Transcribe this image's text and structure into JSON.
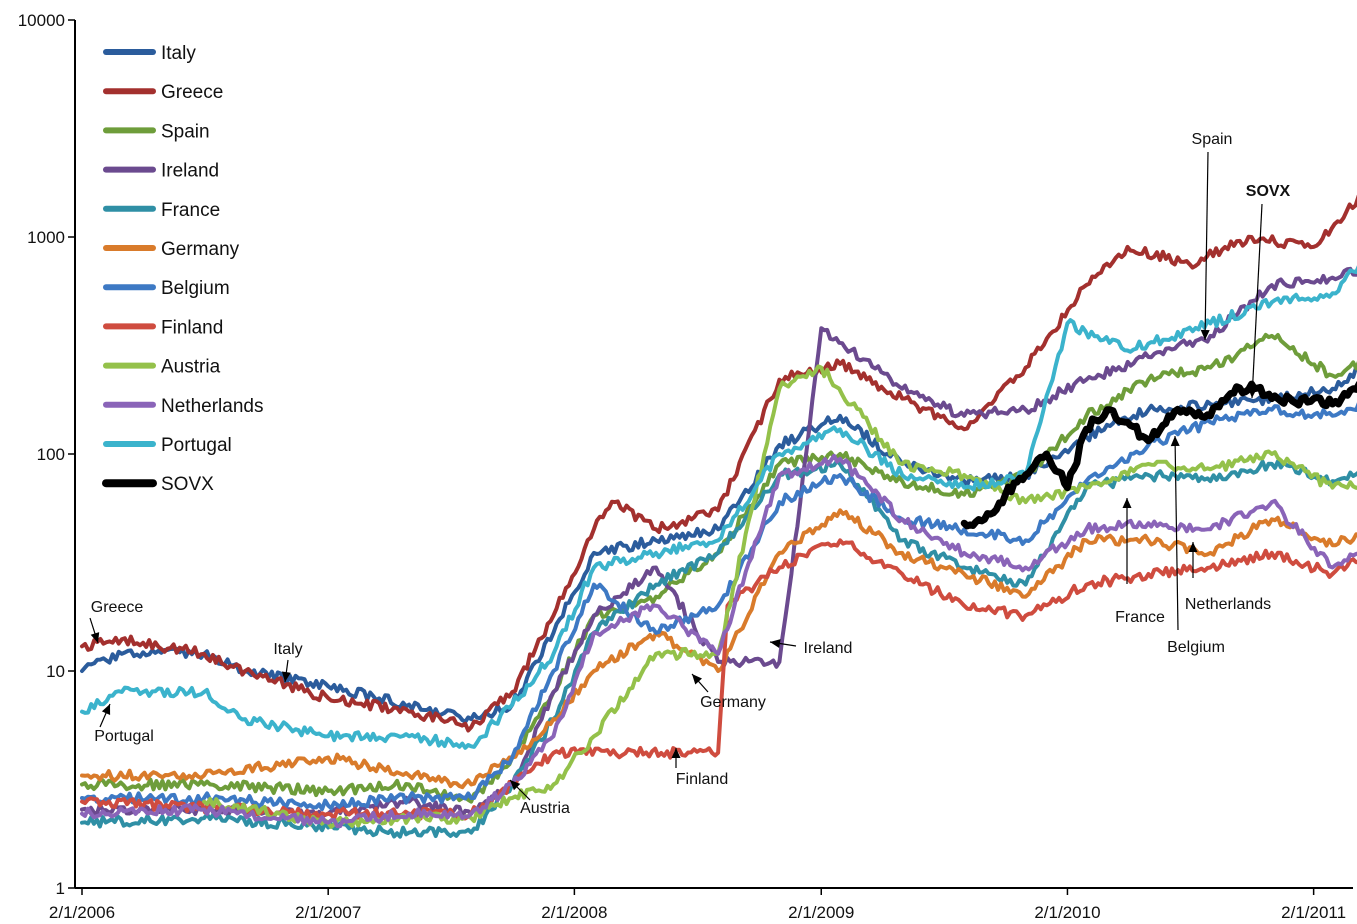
{
  "chart_data": {
    "type": "line",
    "y_scale": "log",
    "ylim": [
      1,
      10000
    ],
    "y_ticks": [
      "1",
      "10",
      "100",
      "1000",
      "10000"
    ],
    "x_range": [
      "2006-02-01",
      "2011-06-01"
    ],
    "x_ticks": [
      {
        "date": "2006-02-01",
        "label": "2/1/2006"
      },
      {
        "date": "2007-02-01",
        "label": "2/1/2007"
      },
      {
        "date": "2008-02-01",
        "label": "2/1/2008"
      },
      {
        "date": "2009-02-01",
        "label": "2/1/2009"
      },
      {
        "date": "2010-02-01",
        "label": "2/1/2010"
      },
      {
        "date": "2011-02-01",
        "label": "2/1/2011"
      }
    ],
    "grid": false,
    "legend_position": "top-left",
    "series": [
      {
        "name": "Italy",
        "color": "#2b5c9c",
        "points": [
          [
            "2006-02-01",
            10
          ],
          [
            "2006-04-01",
            12
          ],
          [
            "2006-08-01",
            12
          ],
          [
            "2006-10-01",
            10
          ],
          [
            "2007-02-01",
            8.5
          ],
          [
            "2007-06-01",
            7
          ],
          [
            "2007-09-01",
            6
          ],
          [
            "2007-11-01",
            7
          ],
          [
            "2008-01-01",
            15
          ],
          [
            "2008-03-01",
            35
          ],
          [
            "2008-06-01",
            40
          ],
          [
            "2008-09-01",
            45
          ],
          [
            "2008-12-01",
            110
          ],
          [
            "2009-03-01",
            150
          ],
          [
            "2009-06-01",
            90
          ],
          [
            "2009-09-01",
            75
          ],
          [
            "2009-12-01",
            80
          ],
          [
            "2010-03-01",
            120
          ],
          [
            "2010-06-01",
            160
          ],
          [
            "2010-09-01",
            170
          ],
          [
            "2010-12-01",
            180
          ],
          [
            "2011-03-01",
            200
          ],
          [
            "2011-06-01",
            330
          ]
        ]
      },
      {
        "name": "Greece",
        "color": "#a3302e",
        "points": [
          [
            "2006-02-01",
            13
          ],
          [
            "2006-04-01",
            14
          ],
          [
            "2006-08-01",
            12
          ],
          [
            "2006-10-01",
            10
          ],
          [
            "2007-02-01",
            7.5
          ],
          [
            "2007-06-01",
            6.5
          ],
          [
            "2007-09-01",
            5.5
          ],
          [
            "2007-11-01",
            8
          ],
          [
            "2008-01-01",
            18
          ],
          [
            "2008-03-01",
            45
          ],
          [
            "2008-04-01",
            60
          ],
          [
            "2008-06-01",
            45
          ],
          [
            "2008-09-01",
            55
          ],
          [
            "2008-12-01",
            220
          ],
          [
            "2009-03-01",
            260
          ],
          [
            "2009-06-01",
            180
          ],
          [
            "2009-09-01",
            130
          ],
          [
            "2009-12-01",
            250
          ],
          [
            "2010-03-01",
            600
          ],
          [
            "2010-05-01",
            900
          ],
          [
            "2010-08-01",
            750
          ],
          [
            "2010-11-01",
            1000
          ],
          [
            "2011-02-01",
            900
          ],
          [
            "2011-06-01",
            2200
          ]
        ]
      },
      {
        "name": "Spain",
        "color": "#6e9d3a",
        "points": [
          [
            "2006-02-01",
            3
          ],
          [
            "2006-08-01",
            3
          ],
          [
            "2007-02-01",
            2.8
          ],
          [
            "2007-06-01",
            3
          ],
          [
            "2007-09-01",
            2.5
          ],
          [
            "2007-11-01",
            4
          ],
          [
            "2008-01-01",
            8
          ],
          [
            "2008-03-01",
            18
          ],
          [
            "2008-06-01",
            22
          ],
          [
            "2008-09-01",
            35
          ],
          [
            "2008-12-01",
            90
          ],
          [
            "2009-03-01",
            100
          ],
          [
            "2009-06-01",
            75
          ],
          [
            "2009-09-01",
            65
          ],
          [
            "2009-12-01",
            80
          ],
          [
            "2010-03-01",
            150
          ],
          [
            "2010-06-01",
            220
          ],
          [
            "2010-09-01",
            250
          ],
          [
            "2010-12-01",
            350
          ],
          [
            "2011-03-01",
            230
          ],
          [
            "2011-06-01",
            300
          ]
        ]
      },
      {
        "name": "Ireland",
        "color": "#6b4a8f",
        "points": [
          [
            "2006-02-01",
            2.3
          ],
          [
            "2006-08-01",
            2.3
          ],
          [
            "2007-02-01",
            2.2
          ],
          [
            "2007-06-01",
            2.5
          ],
          [
            "2007-09-01",
            2.2
          ],
          [
            "2007-11-01",
            3
          ],
          [
            "2008-01-01",
            8
          ],
          [
            "2008-03-01",
            18
          ],
          [
            "2008-06-01",
            30
          ],
          [
            "2008-09-01",
            11
          ],
          [
            "2008-12-01",
            11
          ],
          [
            "2009-01-01",
            60
          ],
          [
            "2009-02-01",
            380
          ],
          [
            "2009-06-01",
            200
          ],
          [
            "2009-09-01",
            150
          ],
          [
            "2009-12-01",
            160
          ],
          [
            "2010-03-01",
            220
          ],
          [
            "2010-06-01",
            280
          ],
          [
            "2010-09-01",
            350
          ],
          [
            "2010-12-01",
            600
          ],
          [
            "2011-03-01",
            650
          ],
          [
            "2011-06-01",
            800
          ]
        ]
      },
      {
        "name": "France",
        "color": "#2f8fa5",
        "points": [
          [
            "2006-02-01",
            2
          ],
          [
            "2006-08-01",
            2.1
          ],
          [
            "2007-02-01",
            1.9
          ],
          [
            "2007-06-01",
            1.8
          ],
          [
            "2007-09-01",
            1.8
          ],
          [
            "2007-11-01",
            3
          ],
          [
            "2008-01-01",
            6
          ],
          [
            "2008-03-01",
            15
          ],
          [
            "2008-06-01",
            25
          ],
          [
            "2008-09-01",
            35
          ],
          [
            "2008-12-01",
            80
          ],
          [
            "2009-03-01",
            90
          ],
          [
            "2009-06-01",
            40
          ],
          [
            "2009-09-01",
            30
          ],
          [
            "2009-12-01",
            25
          ],
          [
            "2010-03-01",
            70
          ],
          [
            "2010-06-01",
            80
          ],
          [
            "2010-09-01",
            75
          ],
          [
            "2010-12-01",
            90
          ],
          [
            "2011-03-01",
            75
          ],
          [
            "2011-06-01",
            100
          ]
        ]
      },
      {
        "name": "Germany",
        "color": "#d97b2b",
        "points": [
          [
            "2006-02-01",
            3.3
          ],
          [
            "2006-08-01",
            3.3
          ],
          [
            "2007-02-01",
            4
          ],
          [
            "2007-06-01",
            3.3
          ],
          [
            "2007-09-01",
            3
          ],
          [
            "2007-11-01",
            4
          ],
          [
            "2008-01-01",
            6
          ],
          [
            "2008-03-01",
            10
          ],
          [
            "2008-06-01",
            15
          ],
          [
            "2008-09-01",
            10
          ],
          [
            "2008-12-01",
            35
          ],
          [
            "2009-03-01",
            55
          ],
          [
            "2009-06-01",
            35
          ],
          [
            "2009-09-01",
            28
          ],
          [
            "2009-12-01",
            22
          ],
          [
            "2010-03-01",
            40
          ],
          [
            "2010-06-01",
            40
          ],
          [
            "2010-09-01",
            35
          ],
          [
            "2010-12-01",
            50
          ],
          [
            "2011-03-01",
            38
          ],
          [
            "2011-06-01",
            50
          ]
        ]
      },
      {
        "name": "Belgium",
        "color": "#3d79c4",
        "points": [
          [
            "2006-02-01",
            2.6
          ],
          [
            "2006-08-01",
            2.6
          ],
          [
            "2007-02-01",
            2.4
          ],
          [
            "2007-06-01",
            2.6
          ],
          [
            "2007-09-01",
            2.6
          ],
          [
            "2007-11-01",
            4
          ],
          [
            "2008-01-01",
            10
          ],
          [
            "2008-03-01",
            25
          ],
          [
            "2008-06-01",
            15
          ],
          [
            "2008-09-01",
            20
          ],
          [
            "2008-12-01",
            60
          ],
          [
            "2009-03-01",
            80
          ],
          [
            "2009-06-01",
            50
          ],
          [
            "2009-09-01",
            45
          ],
          [
            "2009-12-01",
            40
          ],
          [
            "2010-03-01",
            75
          ],
          [
            "2010-06-01",
            110
          ],
          [
            "2010-09-01",
            140
          ],
          [
            "2010-12-01",
            160
          ],
          [
            "2011-03-01",
            150
          ],
          [
            "2011-06-01",
            200
          ]
        ]
      },
      {
        "name": "Finland",
        "color": "#cf4c3f",
        "points": [
          [
            "2006-02-01",
            2.5
          ],
          [
            "2007-02-01",
            2.2
          ],
          [
            "2007-09-01",
            2.2
          ],
          [
            "2007-11-01",
            3
          ],
          [
            "2008-01-01",
            4.2
          ],
          [
            "2008-09-01",
            4.2
          ],
          [
            "2008-09-15",
            20
          ],
          [
            "2008-12-01",
            30
          ],
          [
            "2009-03-01",
            40
          ],
          [
            "2009-06-01",
            28
          ],
          [
            "2009-09-01",
            20
          ],
          [
            "2009-12-01",
            18
          ],
          [
            "2010-03-01",
            25
          ],
          [
            "2010-06-01",
            28
          ],
          [
            "2010-09-01",
            30
          ],
          [
            "2010-12-01",
            35
          ],
          [
            "2011-03-01",
            28
          ],
          [
            "2011-06-01",
            40
          ]
        ]
      },
      {
        "name": "Austria",
        "color": "#94c14a",
        "points": [
          [
            "2006-08-01",
            2.5
          ],
          [
            "2007-02-01",
            2.0
          ],
          [
            "2007-06-01",
            2.1
          ],
          [
            "2007-09-01",
            2.1
          ],
          [
            "2007-11-01",
            2.6
          ],
          [
            "2008-01-01",
            3
          ],
          [
            "2008-03-01",
            5
          ],
          [
            "2008-06-01",
            12
          ],
          [
            "2008-09-01",
            12
          ],
          [
            "2008-12-01",
            200
          ],
          [
            "2009-02-01",
            250
          ],
          [
            "2009-06-01",
            90
          ],
          [
            "2009-09-01",
            80
          ],
          [
            "2009-12-01",
            60
          ],
          [
            "2010-03-01",
            70
          ],
          [
            "2010-06-01",
            90
          ],
          [
            "2010-09-01",
            85
          ],
          [
            "2010-12-01",
            100
          ],
          [
            "2011-03-01",
            70
          ],
          [
            "2011-06-01",
            75
          ]
        ]
      },
      {
        "name": "Netherlands",
        "color": "#8a64b8",
        "points": [
          [
            "2006-02-01",
            2.2
          ],
          [
            "2006-08-01",
            2.3
          ],
          [
            "2007-02-01",
            2.0
          ],
          [
            "2007-06-01",
            2.2
          ],
          [
            "2007-09-01",
            2.2
          ],
          [
            "2007-11-01",
            3
          ],
          [
            "2008-01-01",
            5
          ],
          [
            "2008-03-01",
            15
          ],
          [
            "2008-06-01",
            20
          ],
          [
            "2008-09-01",
            12
          ],
          [
            "2008-12-01",
            80
          ],
          [
            "2009-03-01",
            95
          ],
          [
            "2009-06-01",
            50
          ],
          [
            "2009-09-01",
            35
          ],
          [
            "2009-12-01",
            30
          ],
          [
            "2010-03-01",
            45
          ],
          [
            "2010-06-01",
            48
          ],
          [
            "2010-09-01",
            45
          ],
          [
            "2010-12-01",
            60
          ],
          [
            "2011-03-01",
            30
          ],
          [
            "2011-06-01",
            45
          ]
        ]
      },
      {
        "name": "Portugal",
        "color": "#3bb3cc",
        "points": [
          [
            "2006-02-01",
            6.5
          ],
          [
            "2006-04-01",
            8
          ],
          [
            "2006-08-01",
            8
          ],
          [
            "2006-10-01",
            6
          ],
          [
            "2007-02-01",
            5
          ],
          [
            "2007-06-01",
            5
          ],
          [
            "2007-09-01",
            4.5
          ],
          [
            "2007-11-01",
            7
          ],
          [
            "2008-01-01",
            12
          ],
          [
            "2008-03-01",
            30
          ],
          [
            "2008-06-01",
            35
          ],
          [
            "2008-09-01",
            40
          ],
          [
            "2008-12-01",
            100
          ],
          [
            "2009-03-01",
            130
          ],
          [
            "2009-06-01",
            80
          ],
          [
            "2009-09-01",
            70
          ],
          [
            "2009-12-01",
            80
          ],
          [
            "2010-02-01",
            400
          ],
          [
            "2010-05-01",
            300
          ],
          [
            "2010-09-01",
            400
          ],
          [
            "2010-12-01",
            500
          ],
          [
            "2011-03-01",
            550
          ],
          [
            "2011-06-01",
            1100
          ]
        ]
      },
      {
        "name": "SOVX",
        "color": "#000000",
        "points": [
          [
            "2009-09-01",
            48
          ],
          [
            "2009-10-01",
            50
          ],
          [
            "2009-11-01",
            65
          ],
          [
            "2009-12-01",
            80
          ],
          [
            "2010-01-01",
            100
          ],
          [
            "2010-02-01",
            70
          ],
          [
            "2010-03-01",
            130
          ],
          [
            "2010-04-01",
            160
          ],
          [
            "2010-05-01",
            140
          ],
          [
            "2010-06-01",
            115
          ],
          [
            "2010-07-01",
            150
          ],
          [
            "2010-08-01",
            160
          ],
          [
            "2010-09-01",
            150
          ],
          [
            "2010-10-01",
            190
          ],
          [
            "2010-11-01",
            210
          ],
          [
            "2010-12-01",
            180
          ],
          [
            "2011-01-01",
            175
          ],
          [
            "2011-02-01",
            180
          ],
          [
            "2011-03-01",
            170
          ],
          [
            "2011-04-01",
            200
          ],
          [
            "2011-05-01",
            220
          ],
          [
            "2011-06-01",
            270
          ]
        ]
      }
    ],
    "annotations": [
      {
        "text": "Greece",
        "series": "Greece"
      },
      {
        "text": "Italy",
        "series": "Italy"
      },
      {
        "text": "Portugal",
        "series": "Portugal"
      },
      {
        "text": "Austria",
        "series": "Austria"
      },
      {
        "text": "Finland",
        "series": "Finland"
      },
      {
        "text": "Germany",
        "series": "Germany"
      },
      {
        "text": "Ireland",
        "series": "Ireland"
      },
      {
        "text": "Spain",
        "series": "Spain"
      },
      {
        "text": "SOVX",
        "series": "SOVX",
        "bold": true
      },
      {
        "text": "France",
        "series": "France"
      },
      {
        "text": "Belgium",
        "series": "Belgium"
      },
      {
        "text": "Netherlands",
        "series": "Netherlands"
      }
    ]
  }
}
